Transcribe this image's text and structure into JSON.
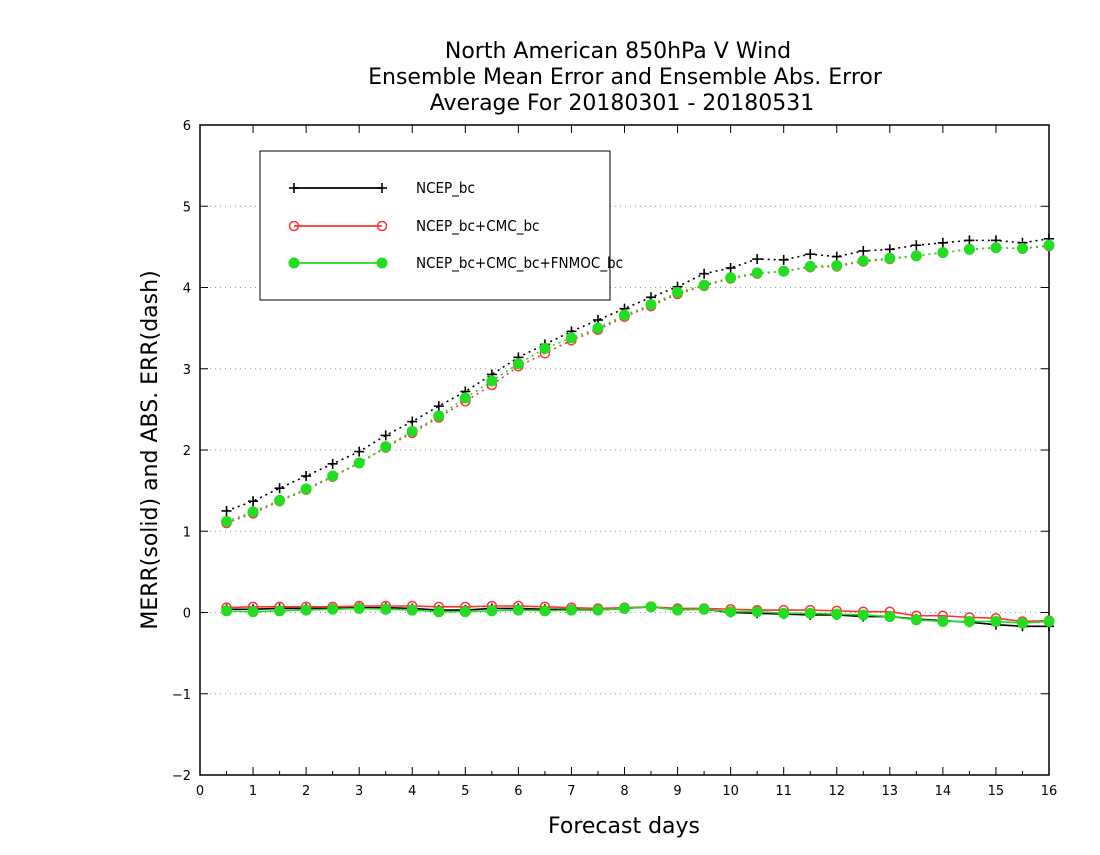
{
  "chart_data": {
    "type": "line",
    "title_lines": [
      "North American 850hPa V Wind",
      "Ensemble Mean Error and Ensemble Abs. Error",
      "Average For 20180301 - 20180531"
    ],
    "xlabel": "Forecast days",
    "ylabel": "MERR(solid) and ABS. ERR(dash)",
    "xlim": [
      0,
      16
    ],
    "ylim": [
      -2,
      6
    ],
    "xticks": [
      "0",
      "1",
      "2",
      "3",
      "4",
      "5",
      "6",
      "7",
      "8",
      "9",
      "10",
      "11",
      "12",
      "13",
      "14",
      "15",
      "16"
    ],
    "yticks": [
      "6",
      "5",
      "4",
      "3",
      "2",
      "1",
      "0",
      "−1",
      "−2"
    ],
    "grid": "horizontal dotted",
    "legend_position": "top-left",
    "x": [
      0.5,
      1,
      1.5,
      2,
      2.5,
      3,
      3.5,
      4,
      4.5,
      5,
      5.5,
      6,
      6.5,
      7,
      7.5,
      8,
      8.5,
      9,
      9.5,
      10,
      10.5,
      11,
      11.5,
      12,
      12.5,
      13,
      13.5,
      14,
      14.5,
      15,
      15.5,
      16
    ],
    "series": [
      {
        "name": "NCEP_bc",
        "color": "#000000",
        "marker": "plus",
        "abs_err": [
          1.25,
          1.37,
          1.53,
          1.68,
          1.83,
          1.98,
          2.18,
          2.35,
          2.54,
          2.72,
          2.93,
          3.14,
          3.3,
          3.46,
          3.6,
          3.74,
          3.88,
          4.01,
          4.17,
          4.24,
          4.35,
          4.34,
          4.41,
          4.38,
          4.45,
          4.47,
          4.52,
          4.55,
          4.58,
          4.58,
          4.55,
          4.6
        ],
        "mean_err": [
          0.04,
          0.04,
          0.05,
          0.05,
          0.05,
          0.06,
          0.06,
          0.05,
          0.03,
          0.03,
          0.05,
          0.05,
          0.04,
          0.04,
          0.03,
          0.05,
          0.07,
          0.04,
          0.04,
          0.0,
          -0.01,
          -0.02,
          -0.03,
          -0.03,
          -0.05,
          -0.05,
          -0.08,
          -0.1,
          -0.12,
          -0.15,
          -0.17,
          -0.17
        ]
      },
      {
        "name": "NCEP_bc+CMC_bc",
        "color": "#ff3333",
        "marker": "open-circle",
        "abs_err": [
          1.1,
          1.22,
          1.37,
          1.51,
          1.67,
          1.84,
          2.03,
          2.21,
          2.4,
          2.6,
          2.8,
          3.03,
          3.19,
          3.35,
          3.48,
          3.64,
          3.77,
          3.92,
          4.02,
          4.11,
          4.17,
          4.2,
          4.25,
          4.26,
          4.32,
          4.35,
          4.39,
          4.43,
          4.47,
          4.49,
          4.48,
          4.51
        ],
        "mean_err": [
          0.06,
          0.07,
          0.07,
          0.07,
          0.07,
          0.08,
          0.08,
          0.08,
          0.07,
          0.07,
          0.08,
          0.08,
          0.07,
          0.06,
          0.05,
          0.06,
          0.07,
          0.05,
          0.05,
          0.04,
          0.03,
          0.03,
          0.03,
          0.02,
          0.01,
          0.01,
          -0.04,
          -0.04,
          -0.06,
          -0.07,
          -0.11,
          -0.1
        ]
      },
      {
        "name": "NCEP_bc+CMC_bc+FNMOC_bc",
        "color": "#22dd22",
        "marker": "filled-circle",
        "abs_err": [
          1.12,
          1.24,
          1.38,
          1.52,
          1.68,
          1.84,
          2.04,
          2.23,
          2.42,
          2.64,
          2.85,
          3.06,
          3.25,
          3.38,
          3.5,
          3.66,
          3.79,
          3.94,
          4.03,
          4.12,
          4.18,
          4.2,
          4.26,
          4.27,
          4.33,
          4.36,
          4.39,
          4.43,
          4.47,
          4.49,
          4.48,
          4.52
        ],
        "mean_err": [
          0.02,
          0.01,
          0.02,
          0.03,
          0.04,
          0.05,
          0.04,
          0.03,
          0.01,
          0.01,
          0.02,
          0.03,
          0.02,
          0.03,
          0.03,
          0.05,
          0.07,
          0.03,
          0.04,
          0.01,
          0.01,
          -0.01,
          -0.01,
          -0.02,
          -0.03,
          -0.05,
          -0.09,
          -0.11,
          -0.11,
          -0.11,
          -0.13,
          -0.11
        ]
      }
    ]
  }
}
